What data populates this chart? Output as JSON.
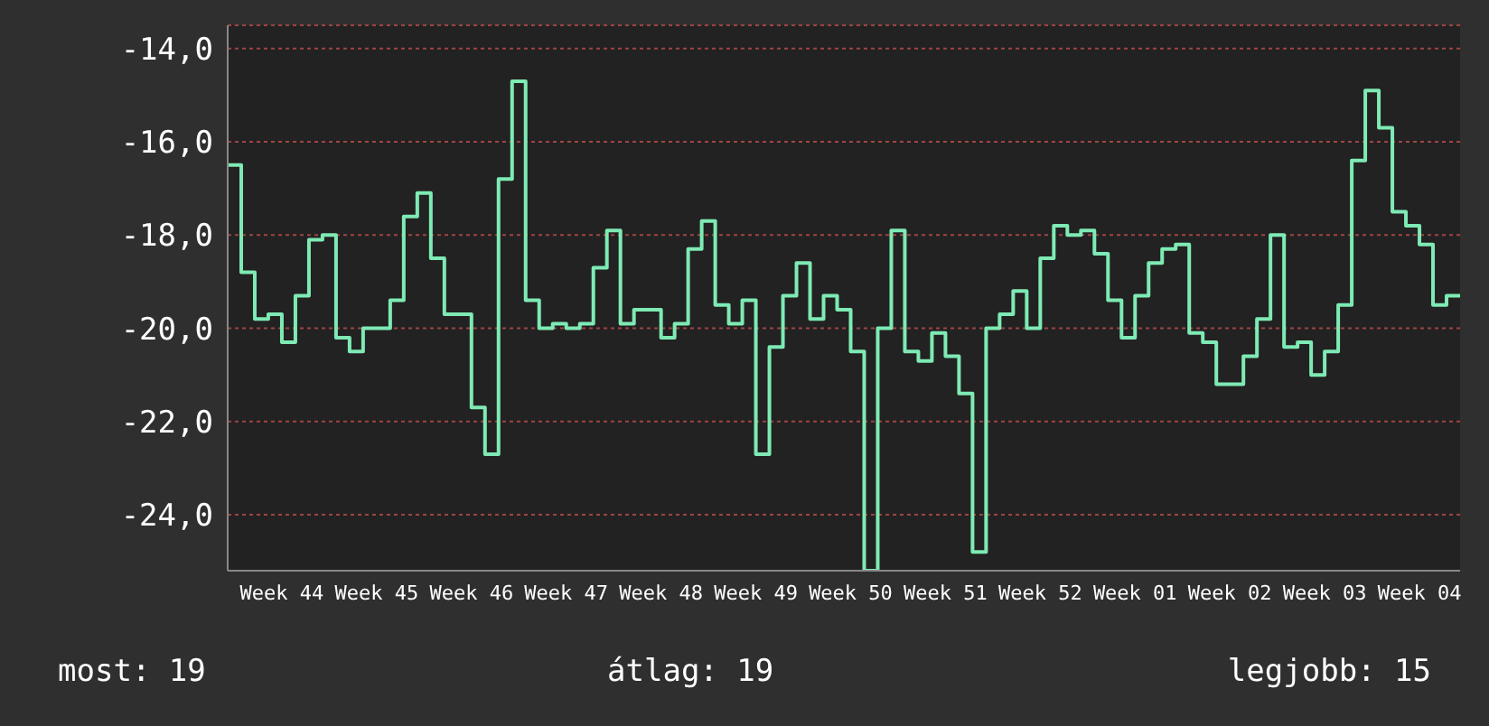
{
  "chart_data": {
    "type": "step",
    "categories": [
      null,
      null,
      null,
      null,
      "Week 44",
      null,
      null,
      null,
      null,
      null,
      null,
      "Week 45",
      null,
      null,
      null,
      null,
      null,
      null,
      "Week 46",
      null,
      null,
      null,
      null,
      null,
      null,
      "Week 47",
      null,
      null,
      null,
      null,
      null,
      null,
      "Week 48",
      null,
      null,
      null,
      null,
      null,
      null,
      "Week 49",
      null,
      null,
      null,
      null,
      null,
      null,
      "Week 50",
      null,
      null,
      null,
      null,
      null,
      null,
      "Week 51",
      null,
      null,
      null,
      null,
      null,
      null,
      "Week 52",
      null,
      null,
      null,
      null,
      null,
      null,
      "Week 01",
      null,
      null,
      null,
      null,
      null,
      null,
      "Week 02",
      null,
      null,
      null,
      null,
      null,
      null,
      "Week 03",
      null,
      null,
      null,
      null,
      null,
      null,
      "Week 04",
      null,
      null,
      null
    ],
    "series": [
      {
        "color": "#7eeab4",
        "values": [
          -16.5,
          -18.8,
          -19.8,
          -19.7,
          -20.3,
          -19.3,
          -18.1,
          -18.0,
          -20.2,
          -20.5,
          -20.0,
          -20.0,
          -19.4,
          -17.6,
          -17.1,
          -18.5,
          -19.7,
          -19.7,
          -21.7,
          -22.7,
          -16.8,
          -14.7,
          -19.4,
          -20.0,
          -19.9,
          -20.0,
          -19.9,
          -18.7,
          -17.9,
          -19.9,
          -19.6,
          -19.6,
          -20.2,
          -19.9,
          -18.3,
          -17.7,
          -19.5,
          -19.9,
          -19.4,
          -22.7,
          -20.4,
          -19.3,
          -18.6,
          -19.8,
          -19.3,
          -19.6,
          -20.5,
          -25.2,
          -20.0,
          -17.9,
          -20.5,
          -20.7,
          -20.1,
          -20.6,
          -21.4,
          -24.8,
          -20.0,
          -19.7,
          -19.2,
          -20.0,
          -18.5,
          -17.8,
          -18.0,
          -17.9,
          -18.4,
          -19.4,
          -20.2,
          -19.3,
          -18.6,
          -18.3,
          -18.2,
          -20.1,
          -20.3,
          -21.2,
          -21.2,
          -20.6,
          -19.8,
          -18.0,
          -20.4,
          -20.3,
          -21.0,
          -20.5,
          -19.5,
          -16.4,
          -14.9,
          -15.7,
          -17.5,
          -17.8,
          -18.2,
          -19.5,
          -19.3,
          -19.3
        ]
      }
    ],
    "ylim": [
      -25.2,
      -13.5
    ],
    "yticks": [
      {
        "value": -24,
        "label": "-24,0"
      },
      {
        "value": -22,
        "label": "-22,0"
      },
      {
        "value": -20,
        "label": "-20,0"
      },
      {
        "value": -18,
        "label": "-18,0"
      },
      {
        "value": -16,
        "label": "-16,0"
      },
      {
        "value": -14,
        "label": "-14,0"
      }
    ],
    "grid": "y",
    "annotations": [
      "most: 19",
      "átlag: 19",
      "legjobb: 15"
    ]
  }
}
